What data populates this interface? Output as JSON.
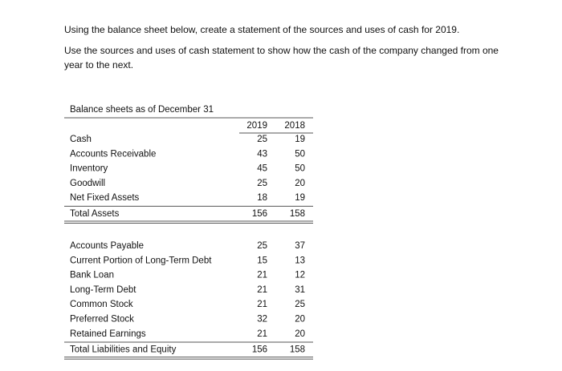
{
  "instructions": [
    "Using the balance sheet below, create a statement of the sources and uses of cash for 2019.",
    "Use the sources and uses of cash statement to show how the cash of the company changed from one year to the next."
  ],
  "table": {
    "title": "Balance sheets as of December 31",
    "columns": [
      "2019",
      "2018"
    ],
    "sections": [
      {
        "rows": [
          [
            "Cash",
            25,
            19
          ],
          [
            "Accounts Receivable",
            43,
            50
          ],
          [
            "Inventory",
            45,
            50
          ],
          [
            "Goodwill",
            25,
            20
          ],
          [
            "Net Fixed Assets",
            18,
            19
          ]
        ],
        "total": [
          "Total Assets",
          156,
          158
        ]
      },
      {
        "rows": [
          [
            "Accounts Payable",
            25,
            37
          ],
          [
            "Current Portion of Long-Term Debt",
            15,
            13
          ],
          [
            "Bank Loan",
            21,
            12
          ],
          [
            "Long-Term Debt",
            21,
            31
          ],
          [
            "Common Stock",
            21,
            25
          ],
          [
            "Preferred Stock",
            32,
            20
          ],
          [
            "Retained Earnings",
            21,
            20
          ]
        ],
        "total": [
          "Total Liabilities and Equity",
          156,
          158
        ]
      }
    ]
  }
}
